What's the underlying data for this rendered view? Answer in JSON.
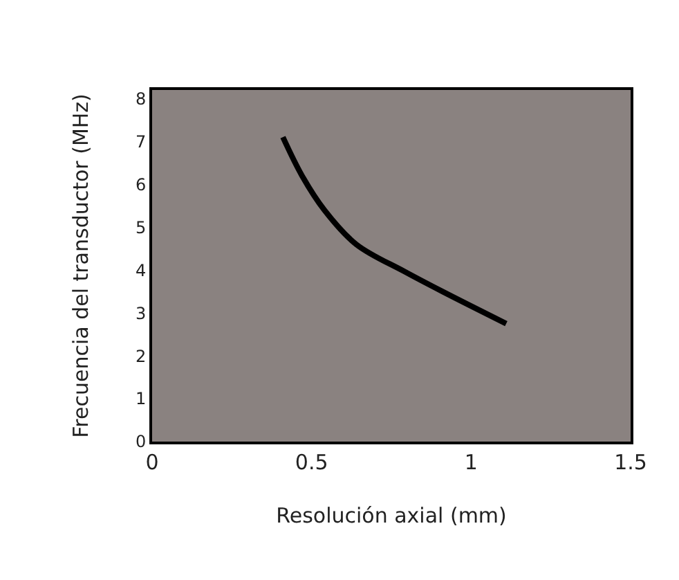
{
  "chart_data": {
    "type": "line",
    "xlabel": "Resolución axial (mm)",
    "ylabel": "Frecuencia del transductor (MHz)",
    "x": [
      0.41,
      0.47,
      0.54,
      0.64,
      0.79,
      0.91,
      1.11
    ],
    "series": [
      {
        "color": "#000000",
        "values": [
          7.1,
          6.2,
          5.4,
          4.6,
          3.97,
          3.5,
          2.75
        ]
      }
    ],
    "xlim": [
      0,
      1.5
    ],
    "xticks": [
      0,
      0.5,
      1,
      1.5
    ],
    "ylim": [
      0,
      8.2
    ],
    "yticks": [
      0,
      1,
      2,
      3,
      4,
      5,
      6,
      7,
      8
    ],
    "grid": false,
    "marker": "none",
    "line_style": "solid"
  }
}
